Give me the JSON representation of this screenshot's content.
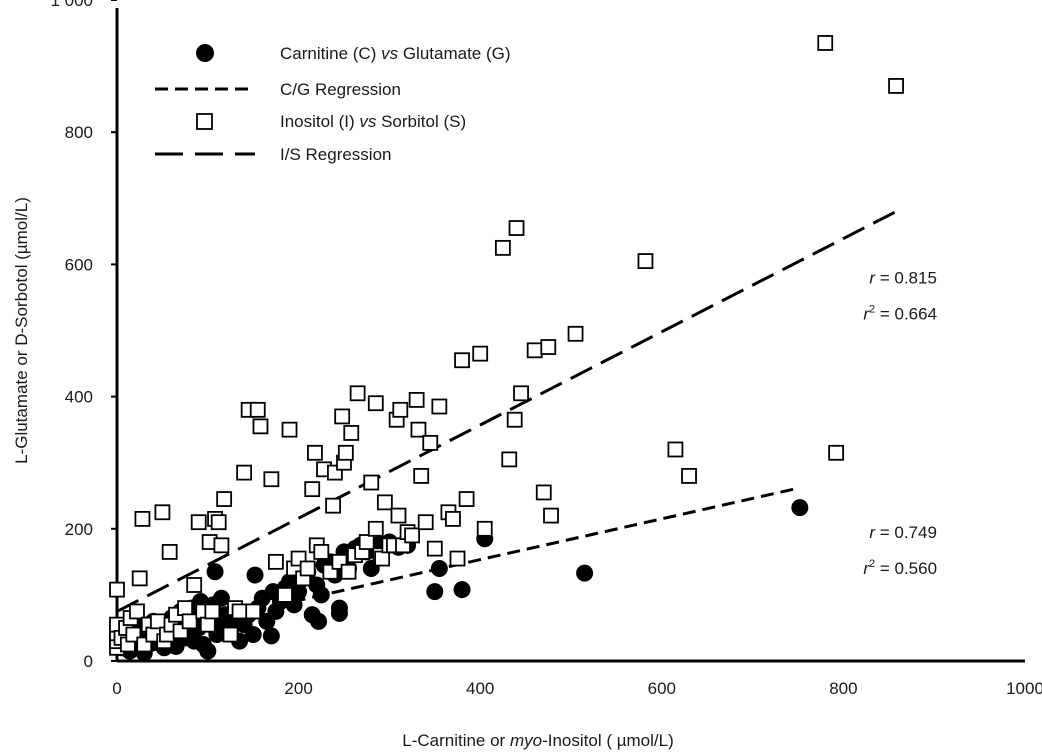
{
  "chart_data": {
    "type": "scatter",
    "title": "",
    "xlabel_parts": [
      {
        "text": "L-Carnitine or ",
        "italic": false
      },
      {
        "text": "myo",
        "italic": true
      },
      {
        "text": "-Inositol ( µmol/L)",
        "italic": false
      }
    ],
    "ylabel": "L-Glutamate or D-Sorbotol (µmol/L)",
    "xlim": [
      0,
      1000
    ],
    "ylim": [
      0,
      1000
    ],
    "x_ticks": [
      0,
      200,
      400,
      600,
      800,
      1000
    ],
    "x_tick_labels": [
      "0",
      "200",
      "400",
      "600",
      "800",
      "1000"
    ],
    "y_ticks": [
      0,
      200,
      400,
      600,
      800,
      1000
    ],
    "y_tick_labels": [
      "0",
      "200",
      "400",
      "600",
      "800",
      "1 000"
    ],
    "grid": false,
    "legend_position": "top-left",
    "legend": [
      {
        "marker": "filled-circle",
        "parts": [
          {
            "text": "Carnitine (C) ",
            "italic": false
          },
          {
            "text": "vs",
            "italic": true
          },
          {
            "text": " Glutamate (G)",
            "italic": false
          }
        ]
      },
      {
        "marker": "short-dash-line",
        "parts": [
          {
            "text": "C/G Regression",
            "italic": false
          }
        ]
      },
      {
        "marker": "open-square",
        "parts": [
          {
            "text": "Inositol (I) ",
            "italic": false
          },
          {
            "text": "vs",
            "italic": true
          },
          {
            "text": " Sorbitol (S)",
            "italic": false
          }
        ]
      },
      {
        "marker": "long-dash-line",
        "parts": [
          {
            "text": "I/S Regression",
            "italic": false
          }
        ]
      }
    ],
    "annotations": [
      {
        "series": "I/S",
        "r_label": "r",
        "r_value": "= 0.815",
        "r2_label": "r",
        "r2_sup": "2",
        "r2_value": "= 0.664",
        "x": 790,
        "y": 580
      },
      {
        "series": "C/G",
        "r_label": "r",
        "r_value": "= 0.749",
        "r2_label": "r",
        "r2_sup": "2",
        "r2_value": "= 0.560",
        "x": 790,
        "y": 195
      }
    ],
    "series": [
      {
        "key": "carnitine_glutamate",
        "marker": "filled-circle",
        "color": "#000000",
        "points": [
          [
            5,
            20
          ],
          [
            8,
            30
          ],
          [
            10,
            25
          ],
          [
            12,
            40
          ],
          [
            14,
            15
          ],
          [
            16,
            35
          ],
          [
            18,
            22
          ],
          [
            20,
            45
          ],
          [
            22,
            30
          ],
          [
            25,
            20
          ],
          [
            28,
            55
          ],
          [
            30,
            12
          ],
          [
            32,
            38
          ],
          [
            35,
            25
          ],
          [
            38,
            50
          ],
          [
            40,
            60
          ],
          [
            42,
            28
          ],
          [
            45,
            42
          ],
          [
            48,
            35
          ],
          [
            50,
            55
          ],
          [
            52,
            20
          ],
          [
            55,
            45
          ],
          [
            58,
            30
          ],
          [
            60,
            65
          ],
          [
            62,
            50
          ],
          [
            65,
            22
          ],
          [
            68,
            40
          ],
          [
            70,
            75
          ],
          [
            72,
            55
          ],
          [
            75,
            35
          ],
          [
            78,
            60
          ],
          [
            80,
            45
          ],
          [
            82,
            80
          ],
          [
            85,
            30
          ],
          [
            88,
            65
          ],
          [
            90,
            50
          ],
          [
            92,
            90
          ],
          [
            95,
            25
          ],
          [
            98,
            70
          ],
          [
            100,
            15
          ],
          [
            103,
            55
          ],
          [
            106,
            85
          ],
          [
            108,
            135
          ],
          [
            110,
            40
          ],
          [
            112,
            60
          ],
          [
            115,
            95
          ],
          [
            118,
            50
          ],
          [
            120,
            70
          ],
          [
            125,
            45
          ],
          [
            130,
            65
          ],
          [
            135,
            30
          ],
          [
            140,
            55
          ],
          [
            145,
            70
          ],
          [
            150,
            40
          ],
          [
            152,
            130
          ],
          [
            155,
            80
          ],
          [
            160,
            95
          ],
          [
            165,
            60
          ],
          [
            170,
            38
          ],
          [
            172,
            105
          ],
          [
            175,
            75
          ],
          [
            180,
            90
          ],
          [
            185,
            110
          ],
          [
            190,
            120
          ],
          [
            195,
            85
          ],
          [
            200,
            105
          ],
          [
            205,
            125
          ],
          [
            210,
            135
          ],
          [
            215,
            70
          ],
          [
            220,
            115
          ],
          [
            222,
            60
          ],
          [
            225,
            100
          ],
          [
            228,
            145
          ],
          [
            235,
            150
          ],
          [
            240,
            130
          ],
          [
            245,
            80
          ],
          [
            245,
            72
          ],
          [
            250,
            165
          ],
          [
            255,
            140
          ],
          [
            258,
            160
          ],
          [
            262,
            170
          ],
          [
            268,
            175
          ],
          [
            275,
            165
          ],
          [
            280,
            140
          ],
          [
            290,
            178
          ],
          [
            300,
            180
          ],
          [
            310,
            172
          ],
          [
            320,
            175
          ],
          [
            350,
            105
          ],
          [
            355,
            140
          ],
          [
            380,
            108
          ],
          [
            405,
            185
          ],
          [
            515,
            133
          ],
          [
            752,
            232
          ]
        ]
      },
      {
        "key": "inositol_sorbitol",
        "marker": "open-square",
        "color": "#000000",
        "points": [
          [
            0,
            20
          ],
          [
            0,
            30
          ],
          [
            0,
            42
          ],
          [
            0,
            55
          ],
          [
            0,
            108
          ],
          [
            5,
            35
          ],
          [
            10,
            50
          ],
          [
            12,
            25
          ],
          [
            15,
            65
          ],
          [
            18,
            40
          ],
          [
            22,
            75
          ],
          [
            25,
            125
          ],
          [
            28,
            215
          ],
          [
            30,
            25
          ],
          [
            35,
            55
          ],
          [
            40,
            40
          ],
          [
            45,
            60
          ],
          [
            50,
            225
          ],
          [
            52,
            30
          ],
          [
            55,
            40
          ],
          [
            58,
            165
          ],
          [
            60,
            55
          ],
          [
            65,
            70
          ],
          [
            70,
            45
          ],
          [
            75,
            80
          ],
          [
            80,
            60
          ],
          [
            85,
            115
          ],
          [
            90,
            210
          ],
          [
            95,
            75
          ],
          [
            100,
            55
          ],
          [
            102,
            180
          ],
          [
            105,
            75
          ],
          [
            108,
            215
          ],
          [
            112,
            210
          ],
          [
            115,
            175
          ],
          [
            118,
            245
          ],
          [
            125,
            40
          ],
          [
            130,
            80
          ],
          [
            135,
            75
          ],
          [
            140,
            285
          ],
          [
            145,
            380
          ],
          [
            150,
            75
          ],
          [
            155,
            380
          ],
          [
            158,
            355
          ],
          [
            170,
            275
          ],
          [
            175,
            150
          ],
          [
            185,
            100
          ],
          [
            190,
            350
          ],
          [
            195,
            140
          ],
          [
            200,
            155
          ],
          [
            205,
            125
          ],
          [
            210,
            140
          ],
          [
            215,
            260
          ],
          [
            218,
            315
          ],
          [
            220,
            175
          ],
          [
            225,
            165
          ],
          [
            228,
            290
          ],
          [
            235,
            135
          ],
          [
            238,
            235
          ],
          [
            240,
            285
          ],
          [
            245,
            150
          ],
          [
            248,
            370
          ],
          [
            250,
            300
          ],
          [
            252,
            315
          ],
          [
            255,
            135
          ],
          [
            258,
            345
          ],
          [
            262,
            160
          ],
          [
            265,
            405
          ],
          [
            270,
            165
          ],
          [
            275,
            180
          ],
          [
            280,
            270
          ],
          [
            285,
            200
          ],
          [
            285,
            390
          ],
          [
            290,
            160
          ],
          [
            292,
            155
          ],
          [
            295,
            240
          ],
          [
            300,
            175
          ],
          [
            305,
            175
          ],
          [
            308,
            365
          ],
          [
            310,
            220
          ],
          [
            312,
            380
          ],
          [
            315,
            175
          ],
          [
            320,
            195
          ],
          [
            325,
            190
          ],
          [
            330,
            395
          ],
          [
            332,
            350
          ],
          [
            335,
            280
          ],
          [
            340,
            210
          ],
          [
            345,
            330
          ],
          [
            350,
            170
          ],
          [
            355,
            385
          ],
          [
            365,
            225
          ],
          [
            370,
            215
          ],
          [
            375,
            155
          ],
          [
            380,
            455
          ],
          [
            385,
            245
          ],
          [
            400,
            465
          ],
          [
            405,
            200
          ],
          [
            425,
            625
          ],
          [
            432,
            305
          ],
          [
            438,
            365
          ],
          [
            440,
            655
          ],
          [
            445,
            405
          ],
          [
            460,
            470
          ],
          [
            470,
            255
          ],
          [
            475,
            475
          ],
          [
            478,
            220
          ],
          [
            505,
            495
          ],
          [
            582,
            605
          ],
          [
            615,
            320
          ],
          [
            630,
            280
          ],
          [
            780,
            935
          ],
          [
            792,
            315
          ],
          [
            858,
            870
          ]
        ]
      }
    ],
    "regressions": [
      {
        "key": "is_regression",
        "style": "long-dash",
        "x0": 0,
        "y0": 75,
        "x1": 858,
        "y1": 680
      },
      {
        "key": "cg_regression",
        "style": "short-dash",
        "x0": 0,
        "y0": 30,
        "x1": 752,
        "y1": 262
      }
    ]
  }
}
